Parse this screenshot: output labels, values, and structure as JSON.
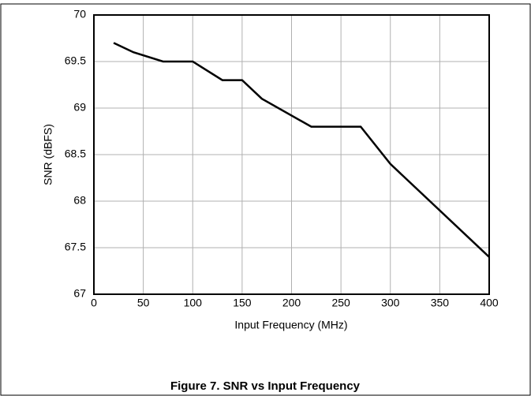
{
  "chart_data": {
    "type": "line",
    "caption": "Figure 7. SNR vs Input Frequency",
    "xlabel": "Input Frequency (MHz)",
    "ylabel": "SNR (dBFS)",
    "x": [
      20,
      40,
      70,
      100,
      130,
      150,
      170,
      220,
      270,
      300,
      400
    ],
    "series": [
      {
        "color": "#000000",
        "values": [
          69.7,
          69.6,
          69.5,
          69.5,
          69.3,
          69.3,
          69.1,
          68.8,
          68.8,
          68.4,
          67.4
        ]
      }
    ],
    "xlim": [
      0,
      400
    ],
    "xticks": [
      0,
      50,
      100,
      150,
      200,
      250,
      300,
      350,
      400
    ],
    "ylim": [
      67,
      70
    ],
    "yticks": [
      67,
      67.5,
      68,
      68.5,
      69,
      69.5,
      70
    ],
    "grid": true
  }
}
